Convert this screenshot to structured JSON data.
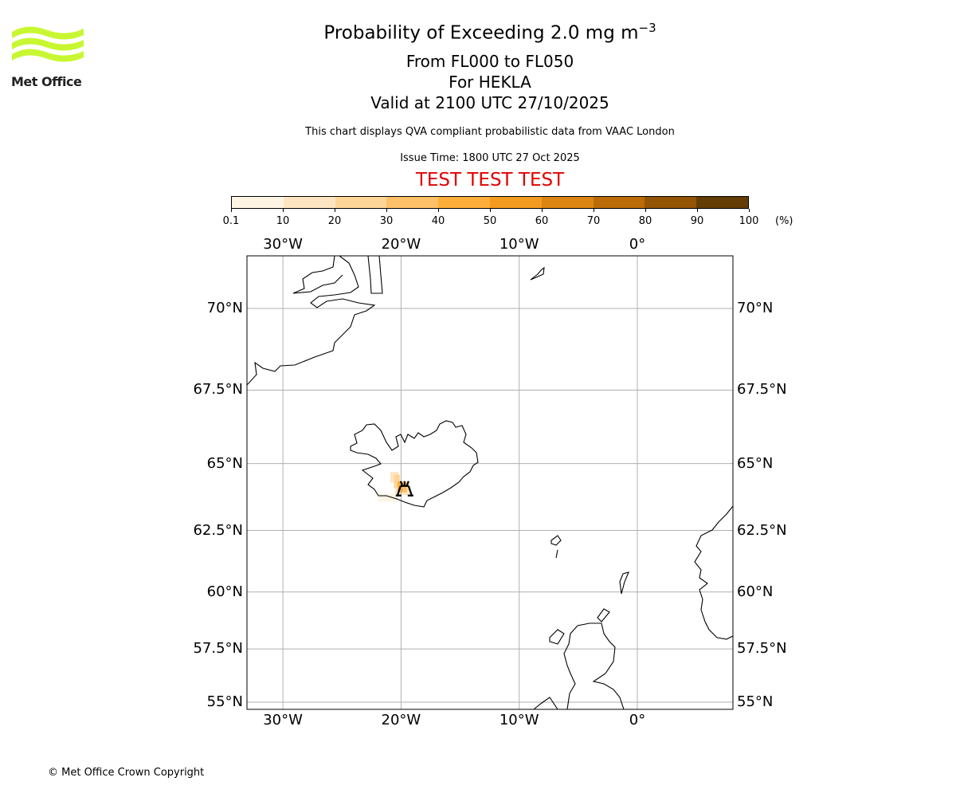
{
  "logo": {
    "text": "Met Office",
    "color": "#c8f731"
  },
  "title": {
    "main": "Probability of Exceeding 2.0 mg m",
    "exponent": "−3",
    "line2": "From FL000 to FL050",
    "line3": "For HEKLA",
    "line4": "Valid at 2100 UTC 27/10/2025"
  },
  "subtitle": "This chart displays QVA compliant probabilistic data from VAAC London",
  "issue_time": "Issue Time: 1800 UTC 27 Oct 2025",
  "test_banner": "TEST TEST TEST",
  "colorbar": {
    "ticks": [
      "0.1",
      "10",
      "20",
      "30",
      "40",
      "50",
      "60",
      "70",
      "80",
      "90",
      "100"
    ],
    "unit": "(%)",
    "colors": [
      "#fef4e4",
      "#fee5c2",
      "#fed599",
      "#fec168",
      "#fdae3a",
      "#f39b20",
      "#dc8512",
      "#bb6c07",
      "#935403",
      "#643d04"
    ]
  },
  "map": {
    "lon_labels": [
      {
        "lon": -30,
        "text": "30°W"
      },
      {
        "lon": -20,
        "text": "20°W"
      },
      {
        "lon": -10,
        "text": "10°W"
      },
      {
        "lon": 0,
        "text": "0°"
      }
    ],
    "lat_labels": [
      {
        "lat": 70,
        "text": "70°N"
      },
      {
        "lat": 67.5,
        "text": "67.5°N"
      },
      {
        "lat": 65,
        "text": "65°N"
      },
      {
        "lat": 62.5,
        "text": "62.5°N"
      },
      {
        "lat": 60,
        "text": "60°N"
      },
      {
        "lat": 57.5,
        "text": "57.5°N"
      },
      {
        "lat": 55,
        "text": "55°N"
      }
    ],
    "volcano": {
      "name": "HEKLA",
      "lon": -19.7,
      "lat": 63.98
    },
    "plume_cells": [
      {
        "lon": -21.9,
        "lat": 63.6,
        "w": 1.6,
        "h": 0.3,
        "p": 5
      },
      {
        "lon": -20.9,
        "lat": 64.3,
        "w": 0.7,
        "h": 0.4,
        "p": 12
      },
      {
        "lon": -20.5,
        "lat": 63.85,
        "w": 1.2,
        "h": 0.5,
        "p": 15
      },
      {
        "lon": -20.6,
        "lat": 64.1,
        "w": 0.5,
        "h": 0.5,
        "p": 22
      },
      {
        "lon": -20.3,
        "lat": 63.95,
        "w": 0.45,
        "h": 0.4,
        "p": 45
      },
      {
        "lon": -19.85,
        "lat": 63.95,
        "w": 0.35,
        "h": 0.35,
        "p": 35
      }
    ]
  },
  "copyright": "© Met Office Crown Copyright"
}
